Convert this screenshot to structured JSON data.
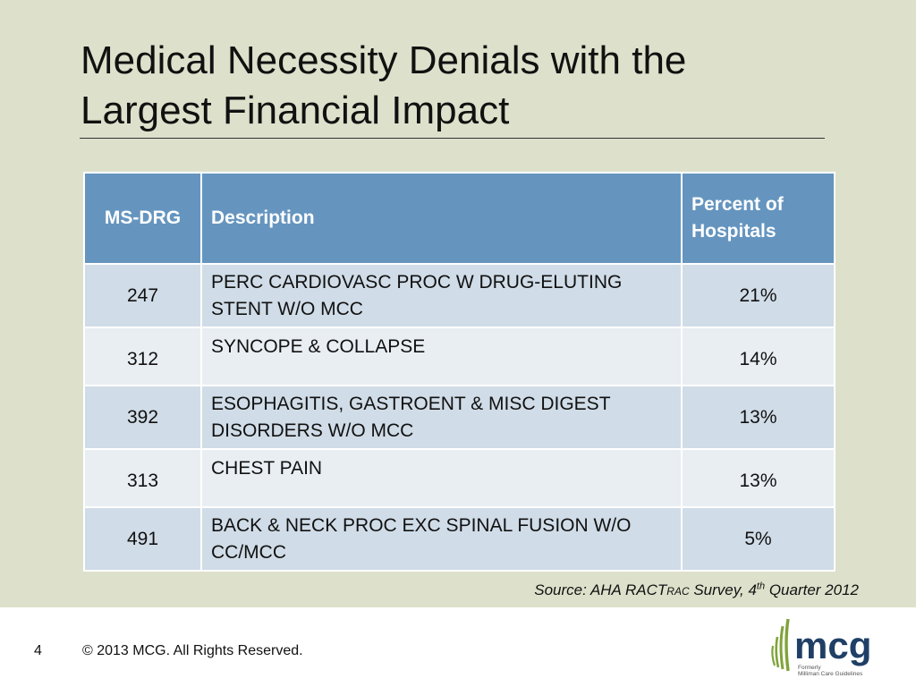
{
  "slide": {
    "title_line1": "Medical Necessity Denials with the",
    "title_line2": "Largest Financial Impact"
  },
  "table": {
    "headers": [
      "MS-DRG",
      "Description",
      "Percent of Hospitals"
    ],
    "rows": [
      {
        "code": "247",
        "description": "PERC CARDIOVASC PROC W DRUG-ELUTING STENT W/O MCC",
        "percent": "21%"
      },
      {
        "code": "312",
        "description": "SYNCOPE & COLLAPSE",
        "percent": "14%"
      },
      {
        "code": "392",
        "description": "ESOPHAGITIS, GASTROENT & MISC DIGEST DISORDERS W/O MCC",
        "percent": "13%"
      },
      {
        "code": "313",
        "description": "CHEST PAIN",
        "percent": "13%"
      },
      {
        "code": "491",
        "description": "BACK & NECK PROC EXC SPINAL FUSION W/O CC/MCC",
        "percent": "5%"
      }
    ]
  },
  "source": {
    "prefix": "Source: AHA RACT",
    "smallcaps": "RAC",
    "middle": " Survey, 4",
    "superscript": "th",
    "suffix": " Quarter 2012"
  },
  "footer": {
    "page_number": "4",
    "copyright": "© 2013 MCG. All Rights Reserved."
  },
  "logo": {
    "wordmark": "mcg",
    "tagline_line1": "Formerly",
    "tagline_line2": "Milliman Care Guidelines"
  },
  "colors": {
    "background": "#dde1cb",
    "header_fill": "#6595bf",
    "row_odd": "#d0dce7",
    "row_even": "#e9eef3",
    "logo_navy": "#1f3f66",
    "logo_green": "#7fa33a"
  }
}
